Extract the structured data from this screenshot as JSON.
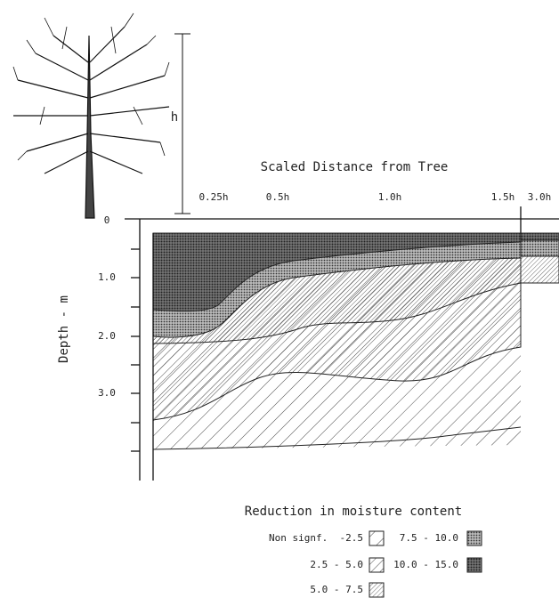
{
  "header": {
    "title": "Scaled Distance from Tree",
    "height_label": "h"
  },
  "x_axis": {
    "labels": [
      "0.25h",
      "0.5h",
      "1.0h",
      "1.5h",
      "3.0h"
    ]
  },
  "y_axis": {
    "title": "Depth - m",
    "labels": [
      "0",
      "1.0",
      "2.0",
      "3.0"
    ]
  },
  "legend": {
    "title": "Reduction in moisture content",
    "items": [
      "Non signf.  -2.5",
      "2.5 - 5.0",
      "5.0 - 7.5",
      "7.5 - 10.0",
      "10.0 - 15.0"
    ]
  }
}
